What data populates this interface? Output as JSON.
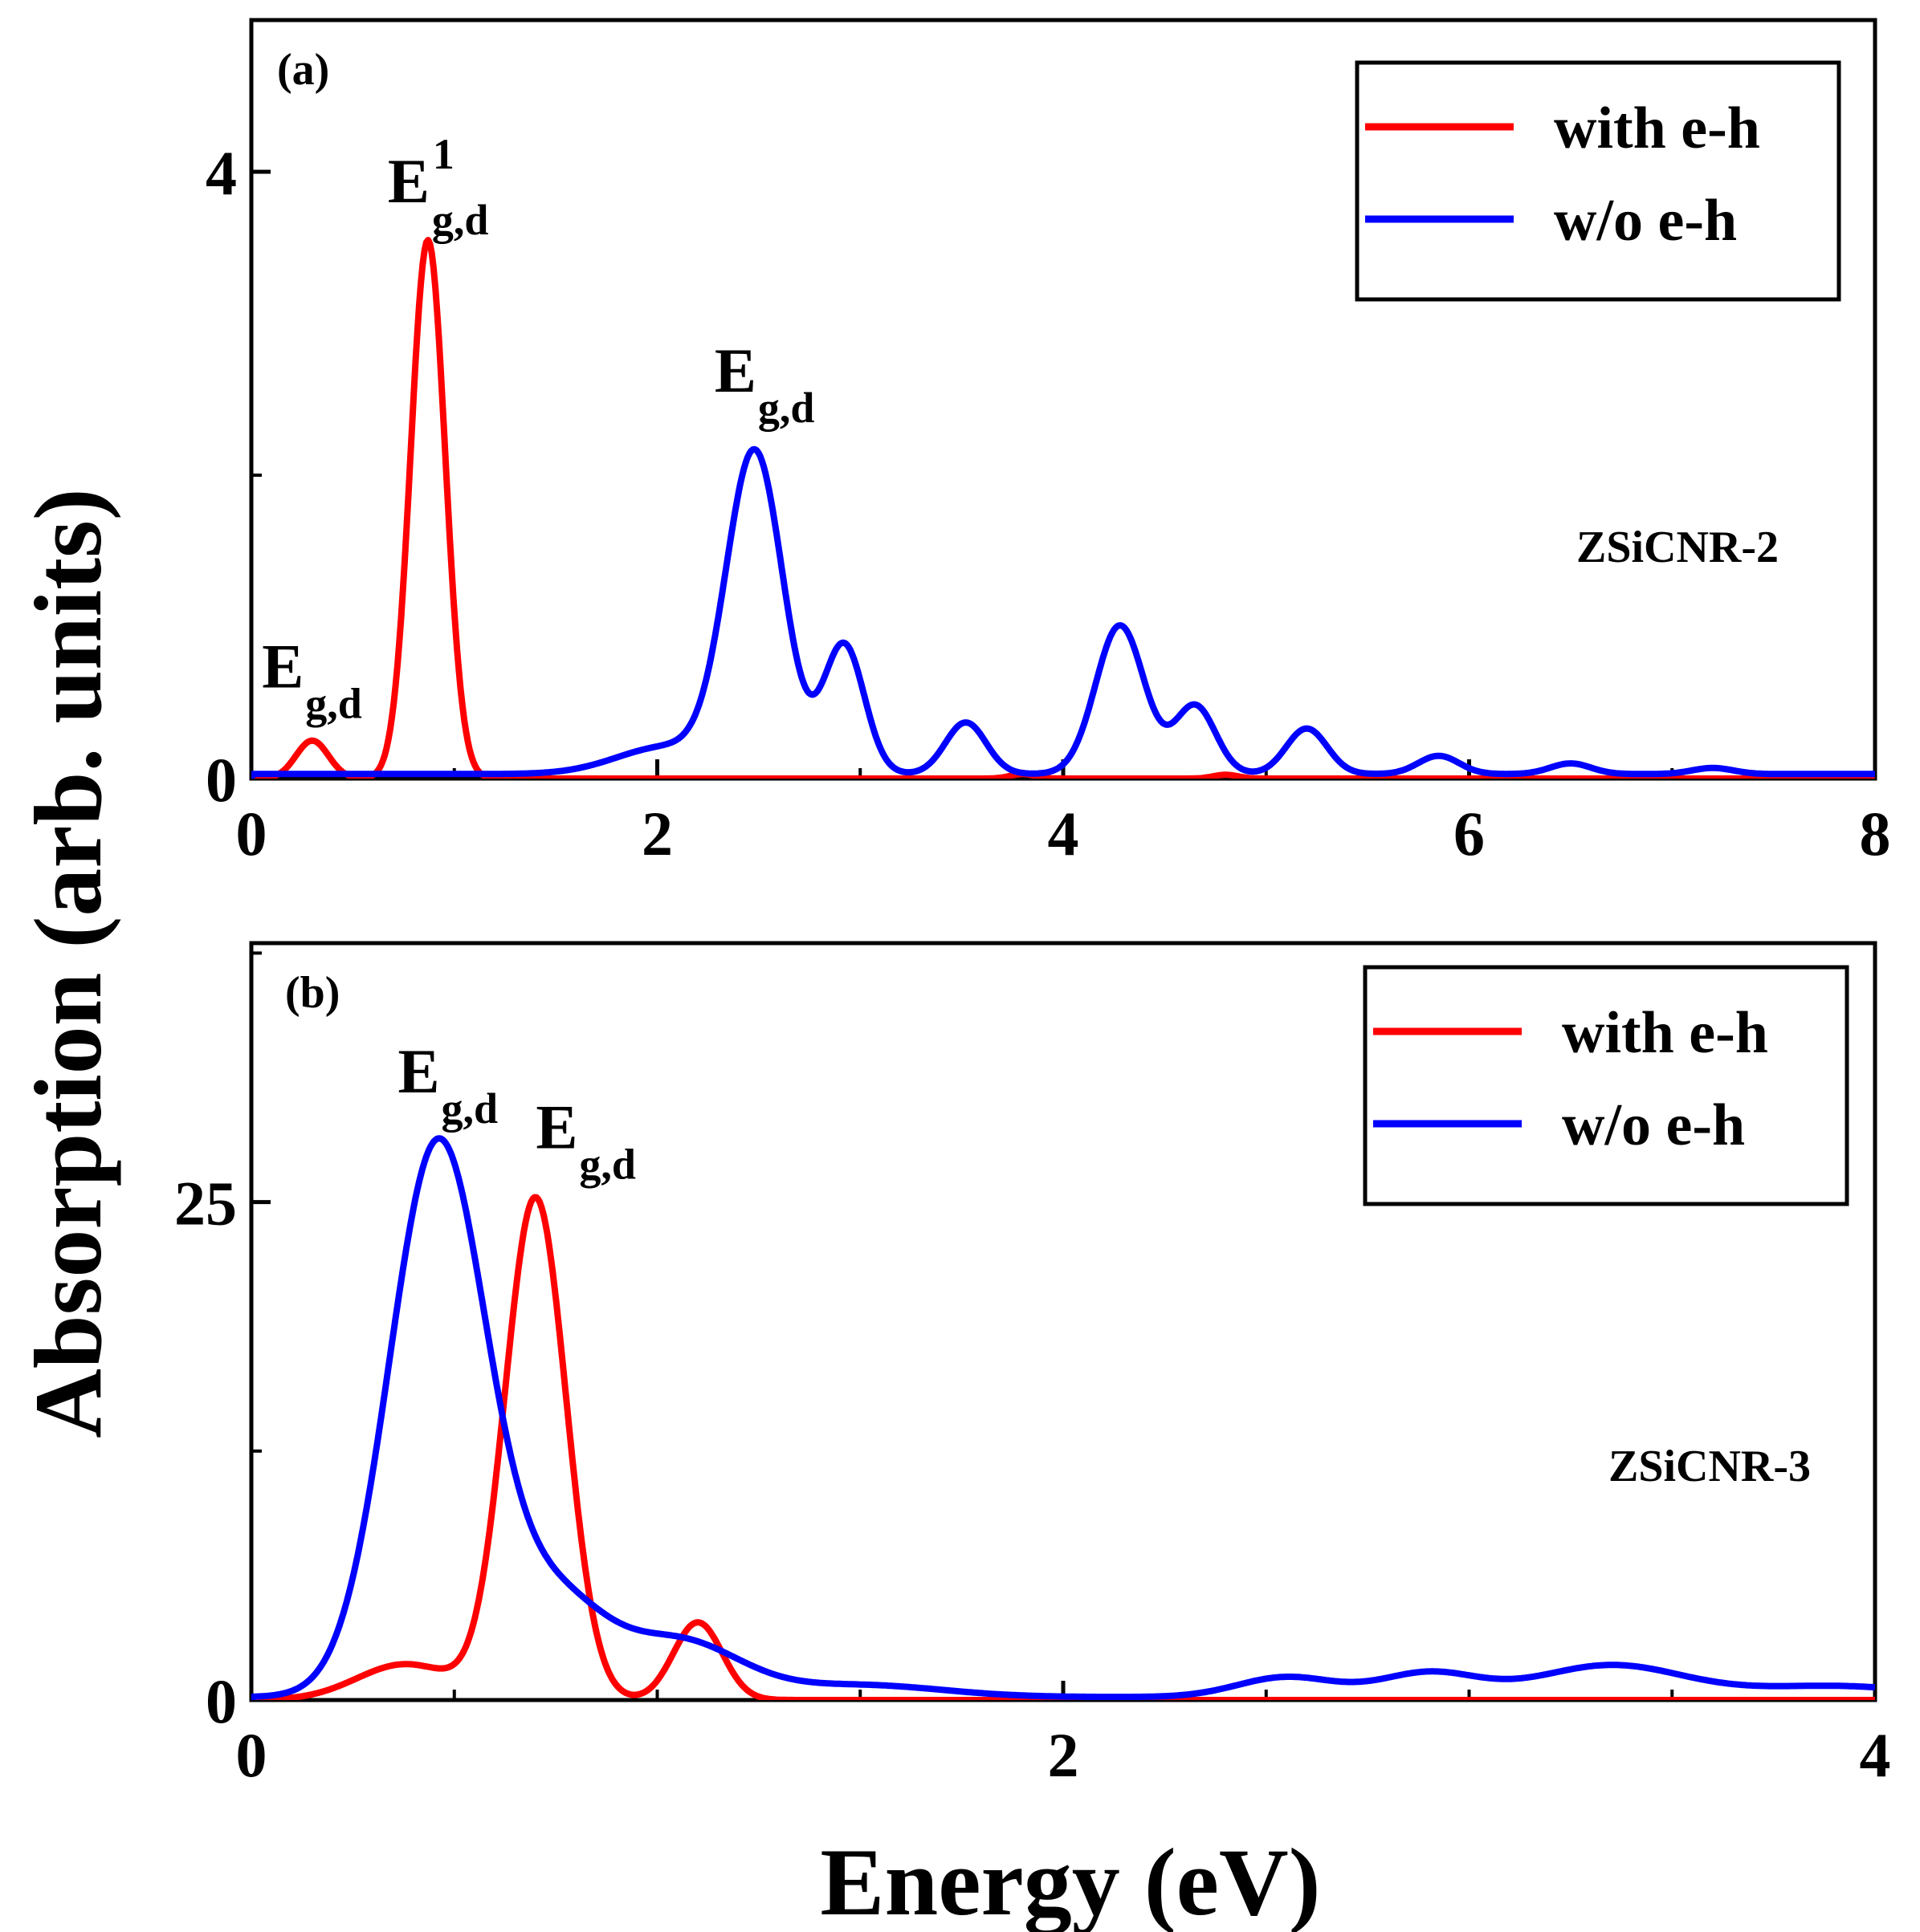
{
  "chart_data": [
    {
      "type": "line",
      "panel": "(a)",
      "sample_label": "ZSiCNR-2",
      "xlabel": "Energy (eV)",
      "ylabel": "Absorption (arb. units)",
      "xlim": [
        0,
        8
      ],
      "ylim": [
        0,
        5
      ],
      "xticks": [
        0,
        2,
        4,
        6,
        8
      ],
      "xtick_labels": [
        "0",
        "2",
        "4",
        "6",
        "8"
      ],
      "yticks": [
        0,
        4
      ],
      "ytick_labels": [
        "0",
        "4"
      ],
      "minor_yticks": [
        2
      ],
      "minor_xticks": [
        1,
        3,
        5,
        7
      ],
      "legend": {
        "position": "top-right",
        "entries": [
          "with e-h",
          "w/o e-h"
        ]
      },
      "series": [
        {
          "name": "with e-h",
          "color": "#ff0000",
          "peaks": [
            {
              "center": 0.3,
              "height": 0.25,
              "width": 0.08
            },
            {
              "center": 0.87,
              "height": 3.55,
              "width": 0.085
            },
            {
              "center": 3.8,
              "height": 0.03,
              "width": 0.06
            },
            {
              "center": 4.8,
              "height": 0.025,
              "width": 0.06
            }
          ],
          "baseline": 0.0
        },
        {
          "name": "w/o e-h",
          "color": "#0000ff",
          "peaks": [
            {
              "center": 2.48,
              "height": 2.1,
              "width": 0.14
            },
            {
              "center": 2.05,
              "height": 0.18,
              "width": 0.25
            },
            {
              "center": 2.92,
              "height": 0.85,
              "width": 0.1
            },
            {
              "center": 3.52,
              "height": 0.34,
              "width": 0.1
            },
            {
              "center": 4.28,
              "height": 0.98,
              "width": 0.12
            },
            {
              "center": 4.65,
              "height": 0.45,
              "width": 0.1
            },
            {
              "center": 5.2,
              "height": 0.3,
              "width": 0.1
            },
            {
              "center": 5.85,
              "height": 0.12,
              "width": 0.1
            },
            {
              "center": 6.5,
              "height": 0.07,
              "width": 0.1
            },
            {
              "center": 7.2,
              "height": 0.04,
              "width": 0.1
            }
          ],
          "baseline": 0.03
        }
      ],
      "annotations": [
        {
          "main": "E",
          "sup": "1",
          "sub": "g,d",
          "x": 0.87,
          "y": 3.8
        },
        {
          "main": "E",
          "sub": "g,d",
          "x": 2.48,
          "y": 2.55
        },
        {
          "main": "E",
          "sub": "g,d",
          "x": 0.25,
          "y": 0.6
        }
      ]
    },
    {
      "type": "line",
      "panel": "(b)",
      "sample_label": "ZSiCNR-3",
      "xlabel": "Energy (eV)",
      "ylabel": "Absorption (arb. units)",
      "xlim": [
        0,
        4
      ],
      "ylim": [
        0,
        38
      ],
      "xticks": [
        0,
        2,
        4
      ],
      "xtick_labels": [
        "0",
        "2",
        "4"
      ],
      "yticks": [
        0,
        25
      ],
      "ytick_labels": [
        "0",
        "25"
      ],
      "minor_yticks": [
        12.5,
        37.5
      ],
      "minor_xticks": [
        0.5,
        1,
        1.5,
        2.5,
        3,
        3.5
      ],
      "legend": {
        "position": "top-right",
        "entries": [
          "with e-h",
          "w/o e-h"
        ]
      },
      "series": [
        {
          "name": "with e-h",
          "color": "#ff0000",
          "peaks": [
            {
              "center": 0.7,
              "height": 25.2,
              "width": 0.075
            },
            {
              "center": 0.38,
              "height": 1.8,
              "width": 0.12
            },
            {
              "center": 1.1,
              "height": 3.9,
              "width": 0.06
            }
          ],
          "baseline": 0.0
        },
        {
          "name": "w/o e-h",
          "color": "#0000ff",
          "peaks": [
            {
              "center": 0.46,
              "height": 27.8,
              "width": 0.12
            },
            {
              "center": 0.75,
              "height": 4.5,
              "width": 0.12
            },
            {
              "center": 1.05,
              "height": 2.8,
              "width": 0.15
            },
            {
              "center": 1.5,
              "height": 0.6,
              "width": 0.2
            },
            {
              "center": 2.55,
              "height": 1.0,
              "width": 0.12
            },
            {
              "center": 2.9,
              "height": 1.2,
              "width": 0.12
            },
            {
              "center": 3.35,
              "height": 1.6,
              "width": 0.18
            },
            {
              "center": 3.9,
              "height": 0.55,
              "width": 0.2
            }
          ],
          "baseline": 0.15
        }
      ],
      "annotations": [
        {
          "main": "E",
          "sub": "g,d",
          "x": 0.46,
          "y": 30.5
        },
        {
          "main": "E",
          "sub": "g,d",
          "x": 0.8,
          "y": 27.7
        }
      ]
    }
  ]
}
